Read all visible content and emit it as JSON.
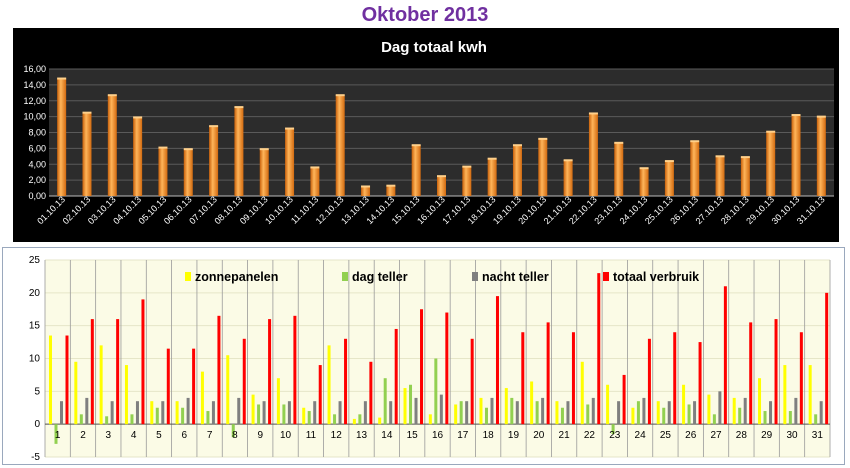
{
  "page": {
    "title": "Oktober 2013"
  },
  "colors": {
    "title": "#7030a0",
    "bar": "#f28a1a",
    "chart_bg": "#000000",
    "plot_bg": "#2c2c2c",
    "zonnepanelen": "#ffff00",
    "dag_teller": "#92d050",
    "nacht_teller": "#7f7f7f",
    "totaal_verbruik": "#ff0000",
    "bottom_plot_bg": "#fbfbe6"
  },
  "chart_data": [
    {
      "type": "bar",
      "title": "Dag totaal kwh",
      "categories": [
        "01.10.13",
        "02.10.13",
        "03.10.13",
        "04.10.13",
        "05.10.13",
        "06.10.13",
        "07.10.13",
        "08.10.13",
        "09.10.13",
        "10.10.13",
        "11.10.13",
        "12.10.13",
        "13.10.13",
        "14.10.13",
        "15.10.13",
        "16.10.13",
        "17.10.13",
        "18.10.13",
        "19.10.13",
        "20.10.13",
        "21.10.13",
        "22.10.13",
        "23.10.13",
        "24.10.13",
        "25.10.13",
        "26.10.13",
        "27.10.13",
        "28.10.13",
        "29.10.13",
        "30.10.13",
        "31.10.13"
      ],
      "values": [
        14.8,
        10.5,
        12.7,
        9.9,
        6.1,
        5.9,
        8.8,
        11.2,
        5.9,
        8.5,
        3.6,
        12.7,
        1.2,
        1.3,
        6.4,
        2.5,
        3.7,
        4.7,
        6.4,
        7.2,
        4.5,
        10.4,
        6.7,
        3.5,
        4.4,
        6.9,
        5.0,
        4.9,
        8.1,
        10.2,
        10.0
      ],
      "ylim": [
        0,
        16
      ],
      "yticks": [
        "0,00",
        "2,00",
        "4,00",
        "6,00",
        "8,00",
        "10,00",
        "12,00",
        "14,00",
        "16,00"
      ],
      "grid": true
    },
    {
      "type": "bar",
      "title": "",
      "categories": [
        "1",
        "2",
        "3",
        "4",
        "5",
        "6",
        "7",
        "8",
        "9",
        "10",
        "11",
        "12",
        "13",
        "14",
        "15",
        "16",
        "17",
        "18",
        "19",
        "20",
        "21",
        "22",
        "23",
        "24",
        "25",
        "26",
        "27",
        "28",
        "29",
        "30",
        "31"
      ],
      "ylim": [
        -5,
        25
      ],
      "yticks": [
        "-5",
        "0",
        "5",
        "10",
        "15",
        "20",
        "25"
      ],
      "legend_position": "top",
      "series": [
        {
          "name": "zonnepanelen",
          "values": [
            13.5,
            9.5,
            12.0,
            9.0,
            3.5,
            3.5,
            8.0,
            10.5,
            4.5,
            7.0,
            2.5,
            12.0,
            0.8,
            1.0,
            5.5,
            1.5,
            3.0,
            4.0,
            5.5,
            6.5,
            3.5,
            9.5,
            6.0,
            2.5,
            3.5,
            6.0,
            4.5,
            4.0,
            7.0,
            9.0,
            9.0
          ]
        },
        {
          "name": "dag teller",
          "values": [
            -3.0,
            1.5,
            1.2,
            1.5,
            2.5,
            2.5,
            2.0,
            -2.0,
            3.0,
            3.0,
            2.0,
            1.5,
            1.5,
            7.0,
            6.0,
            10.0,
            3.5,
            2.5,
            4.0,
            3.5,
            2.5,
            3.0,
            -1.5,
            3.5,
            2.5,
            3.0,
            1.5,
            2.5,
            2.0,
            2.0,
            1.5
          ]
        },
        {
          "name": "nacht teller",
          "values": [
            3.5,
            4.0,
            3.5,
            3.5,
            3.5,
            4.0,
            3.5,
            4.0,
            3.5,
            3.5,
            3.5,
            3.5,
            3.5,
            3.5,
            4.0,
            4.5,
            3.5,
            4.0,
            3.5,
            4.0,
            3.5,
            4.0,
            3.5,
            4.0,
            3.5,
            3.5,
            5.0,
            4.0,
            3.5,
            4.0,
            3.5
          ]
        },
        {
          "name": "totaal verbruik",
          "values": [
            13.5,
            16.0,
            16.0,
            19.0,
            11.5,
            11.5,
            16.5,
            13.0,
            16.0,
            16.5,
            9.0,
            13.0,
            9.5,
            14.5,
            17.5,
            17.0,
            13.0,
            19.5,
            14.0,
            15.5,
            14.0,
            23.0,
            7.5,
            13.0,
            14.0,
            12.5,
            21.0,
            15.5,
            16.0,
            14.0,
            20.0
          ]
        }
      ]
    }
  ]
}
